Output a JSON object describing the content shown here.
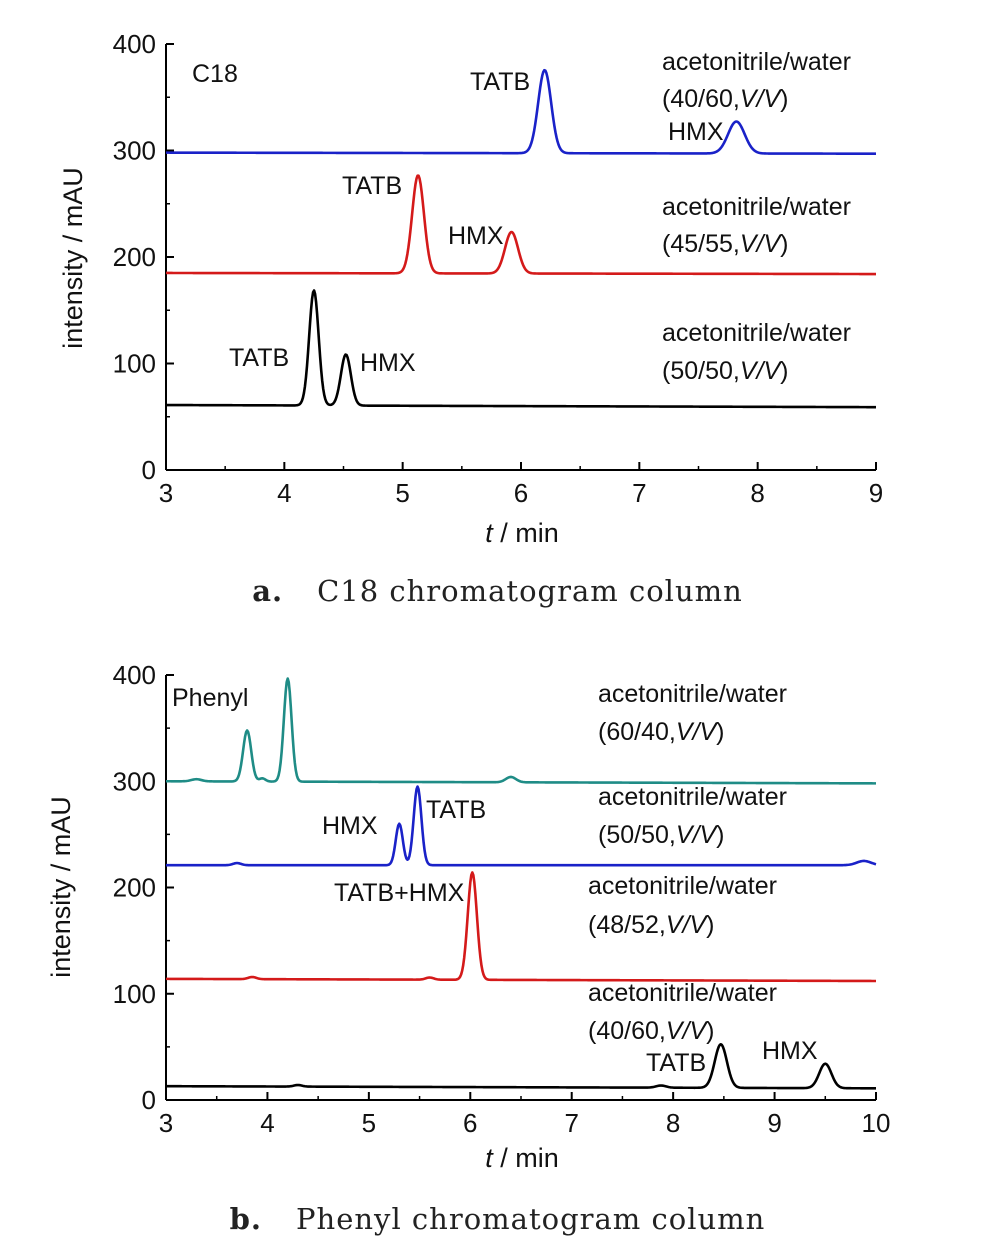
{
  "chart_data": [
    {
      "type": "line",
      "column_label": "C18",
      "caption_letter": "a.",
      "caption_text": "C18 chromatogram column",
      "xlabel_t": "t",
      "xlabel_unit": " / min",
      "ylabel": "intensity / mAU",
      "xlim": [
        3,
        9
      ],
      "ylim": [
        0,
        400
      ],
      "xticks": [
        3,
        4,
        5,
        6,
        7,
        8,
        9
      ],
      "yticks": [
        0,
        100,
        200,
        300,
        400
      ],
      "series": [
        {
          "color": "#1a22c8",
          "baseline_start": 298,
          "baseline_end": 297,
          "peaks": [
            {
              "x": 6.2,
              "height": 78,
              "width": 0.055
            },
            {
              "x": 7.82,
              "height": 30,
              "width": 0.07
            }
          ],
          "condition_line1": "acetonitrile/water",
          "condition_line2_prefix": "(40/60,",
          "condition_line2_italic": "V/V",
          "condition_line2_suffix": ")"
        },
        {
          "color": "#d41a1a",
          "baseline_start": 185,
          "baseline_end": 184,
          "peaks": [
            {
              "x": 5.13,
              "height": 92,
              "width": 0.05
            },
            {
              "x": 5.92,
              "height": 39,
              "width": 0.055
            }
          ],
          "condition_line1": "acetonitrile/water",
          "condition_line2_prefix": "(45/55,",
          "condition_line2_italic": "V/V",
          "condition_line2_suffix": ")"
        },
        {
          "color": "#000000",
          "baseline_start": 61,
          "baseline_end": 59,
          "peaks": [
            {
              "x": 4.25,
              "height": 108,
              "width": 0.04
            },
            {
              "x": 4.52,
              "height": 48,
              "width": 0.042
            }
          ],
          "condition_line1": "acetonitrile/water",
          "condition_line2_prefix": "(50/50,",
          "condition_line2_italic": "V/V",
          "condition_line2_suffix": ")"
        }
      ],
      "peak_labels": [
        "TATB",
        "HMX",
        "TATB",
        "HMX",
        "TATB",
        "HMX"
      ]
    },
    {
      "type": "line",
      "column_label": "Phenyl",
      "caption_letter": "b.",
      "caption_text": "Phenyl chromatogram column",
      "xlabel_t": "t",
      "xlabel_unit": " / min",
      "ylabel": "intensity / mAU",
      "xlim": [
        3,
        10
      ],
      "ylim": [
        0,
        400
      ],
      "xticks": [
        3,
        4,
        5,
        6,
        7,
        8,
        9,
        10
      ],
      "yticks": [
        0,
        100,
        200,
        300,
        400
      ],
      "series": [
        {
          "color": "#1f8c86",
          "baseline_start": 300,
          "baseline_end": 298,
          "peaks": [
            {
              "x": 3.3,
              "height": 2,
              "width": 0.05
            },
            {
              "x": 3.8,
              "height": 48,
              "width": 0.04
            },
            {
              "x": 3.95,
              "height": 3,
              "width": 0.03
            },
            {
              "x": 4.2,
              "height": 97,
              "width": 0.038
            },
            {
              "x": 6.4,
              "height": 5,
              "width": 0.05
            }
          ],
          "condition_line1": "acetonitrile/water",
          "condition_line2_prefix": "(60/40,",
          "condition_line2_italic": "V/V",
          "condition_line2_suffix": ")"
        },
        {
          "color": "#1a22c8",
          "baseline_start": 221,
          "baseline_end": 221,
          "peaks": [
            {
              "x": 3.7,
              "height": 2,
              "width": 0.04
            },
            {
              "x": 5.3,
              "height": 39,
              "width": 0.035
            },
            {
              "x": 5.48,
              "height": 74,
              "width": 0.038
            },
            {
              "x": 9.88,
              "height": 4,
              "width": 0.07
            }
          ],
          "condition_line1": "acetonitrile/water",
          "condition_line2_prefix": "(50/50,",
          "condition_line2_italic": "V/V",
          "condition_line2_suffix": ")"
        },
        {
          "color": "#d41a1a",
          "baseline_start": 114,
          "baseline_end": 112,
          "peaks": [
            {
              "x": 3.85,
              "height": 2,
              "width": 0.04
            },
            {
              "x": 5.6,
              "height": 2,
              "width": 0.04
            },
            {
              "x": 6.02,
              "height": 101,
              "width": 0.045
            }
          ],
          "condition_line1": "acetonitrile/water",
          "condition_line2_prefix": "(48/52,",
          "condition_line2_italic": "V/V",
          "condition_line2_suffix": ")"
        },
        {
          "color": "#000000",
          "baseline_start": 13,
          "baseline_end": 11,
          "peaks": [
            {
              "x": 4.3,
              "height": 1.5,
              "width": 0.04
            },
            {
              "x": 7.88,
              "height": 2,
              "width": 0.05
            },
            {
              "x": 8.47,
              "height": 41,
              "width": 0.06
            },
            {
              "x": 9.5,
              "height": 23,
              "width": 0.06
            }
          ],
          "condition_line1": "acetonitrile/water",
          "condition_line2_prefix": "(40/60,",
          "condition_line2_italic": "V/V",
          "condition_line2_suffix": ")"
        }
      ],
      "peak_labels": [
        "HMX",
        "TATB",
        "TATB+HMX",
        "TATB",
        "HMX"
      ]
    }
  ]
}
